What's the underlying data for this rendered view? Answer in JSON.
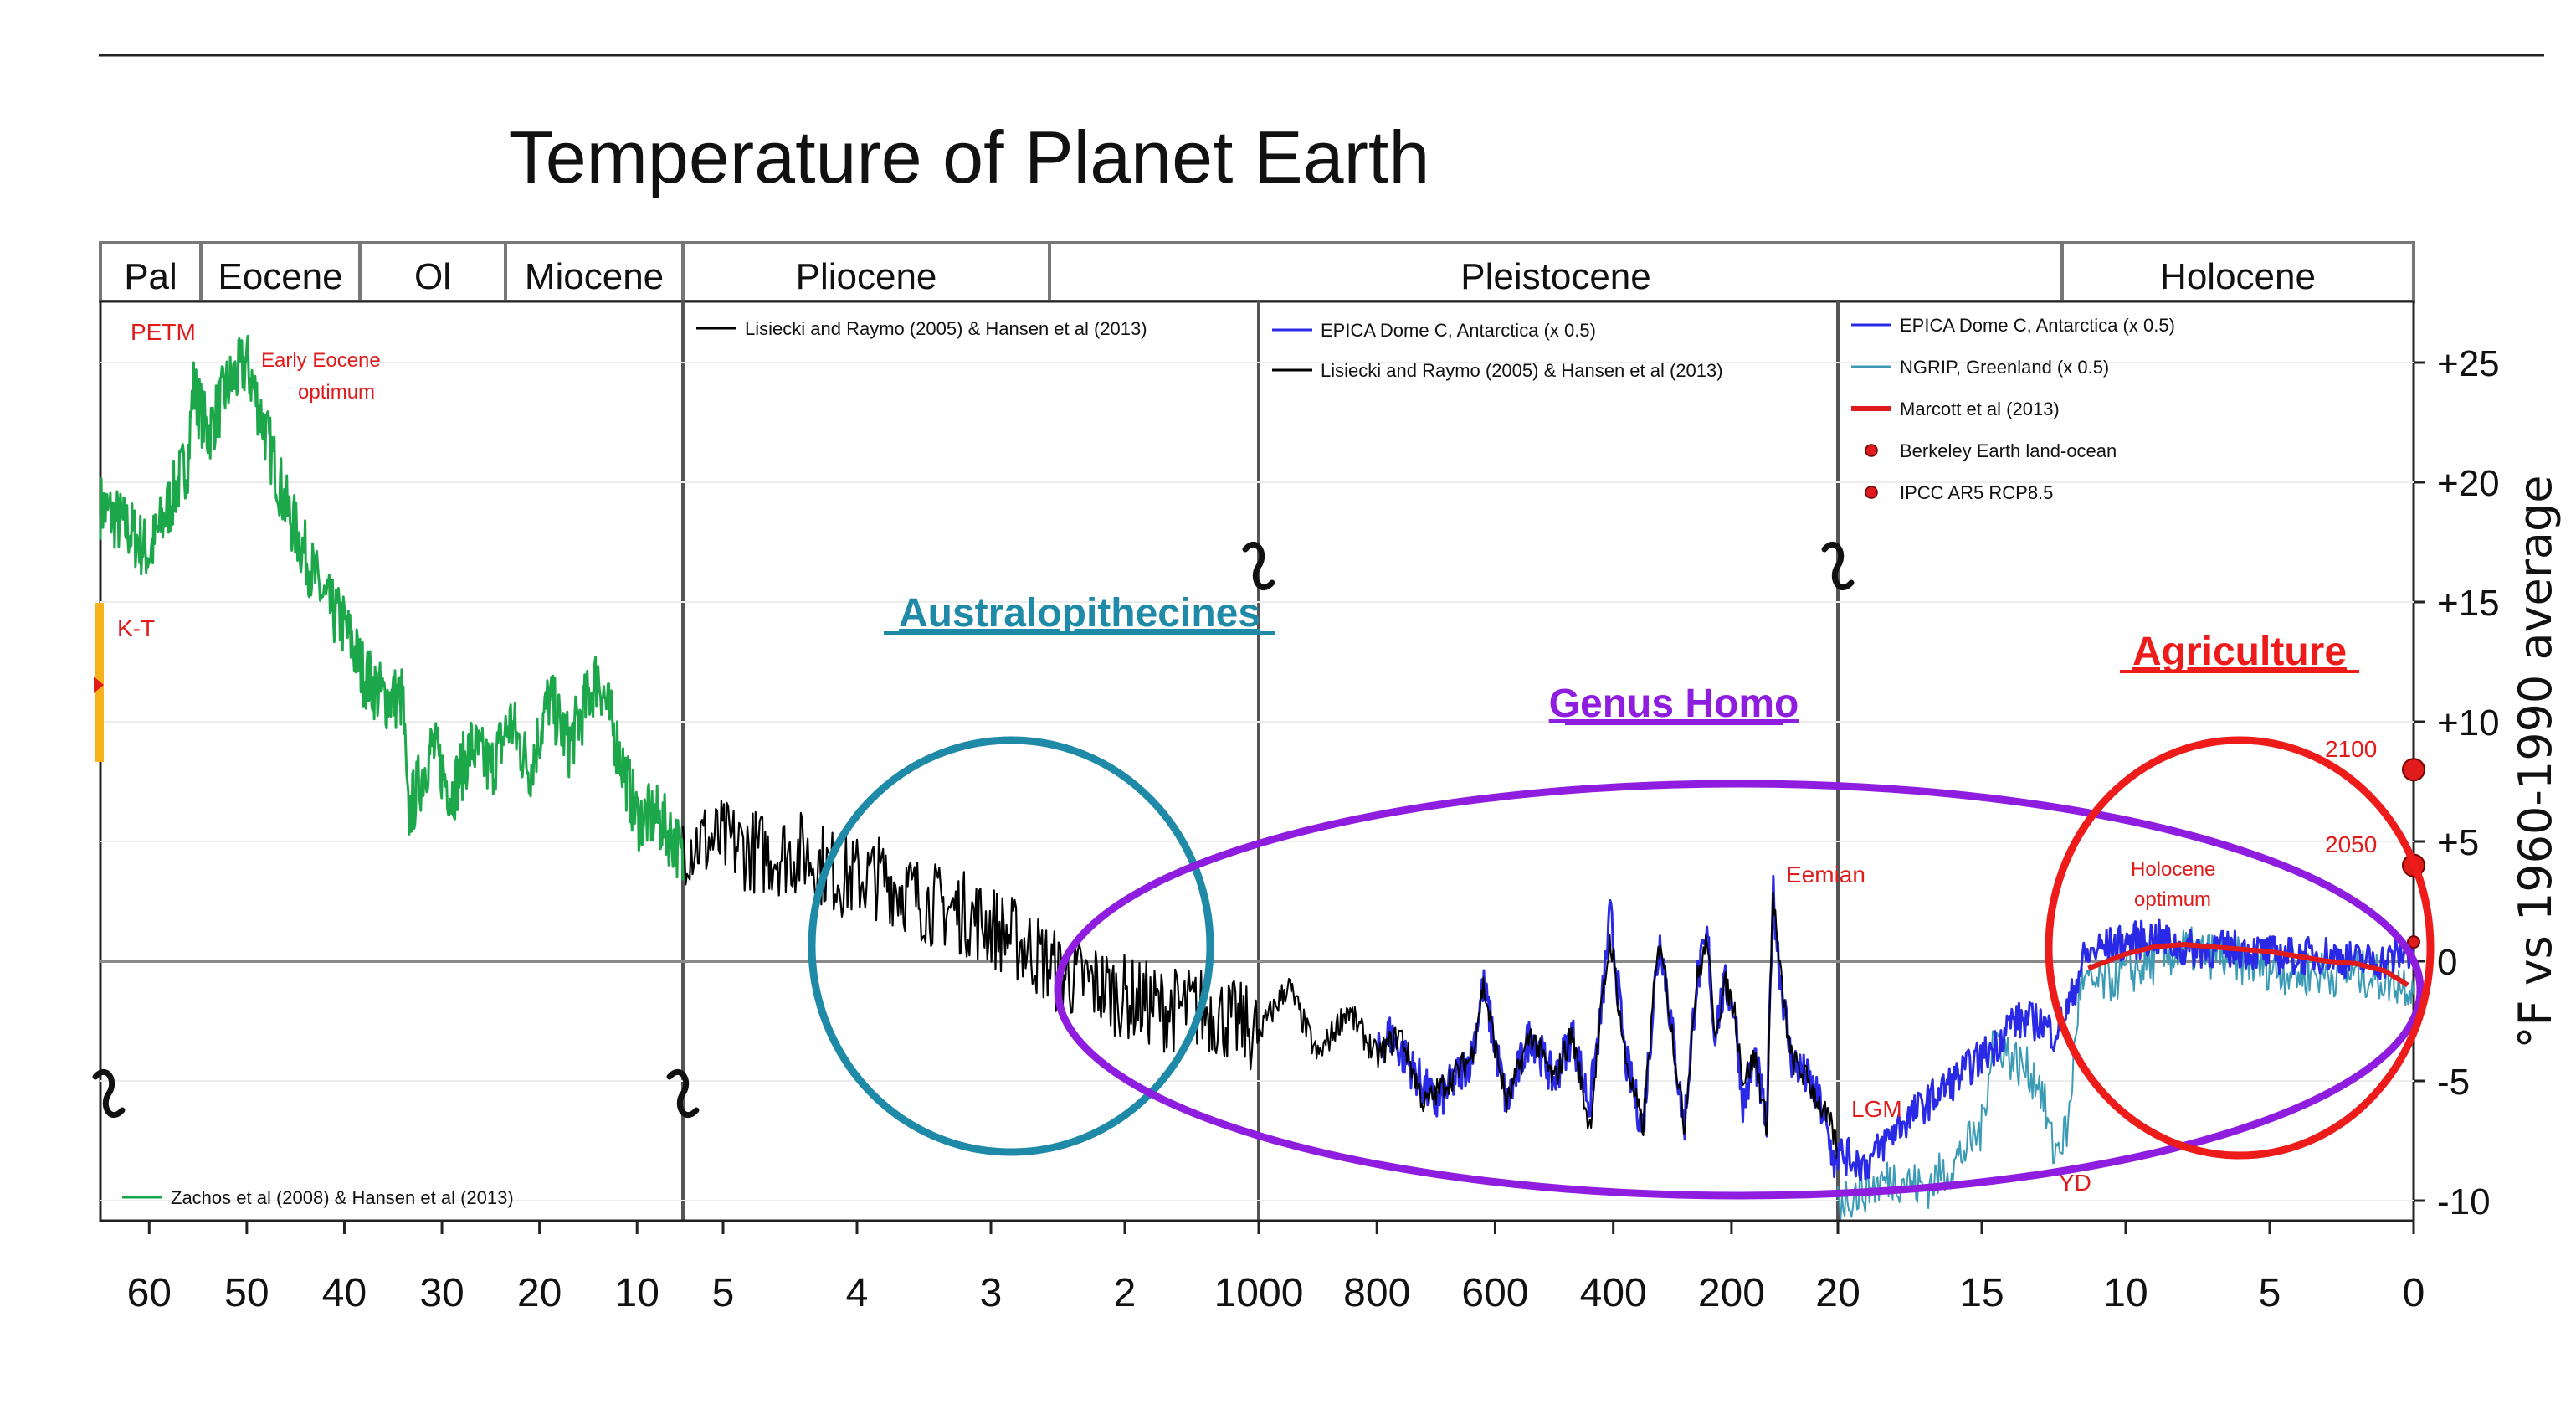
{
  "chart_data": {
    "type": "line",
    "title": "Temperature of Planet Earth",
    "ylabel": "°F vs 1960-1990 average",
    "ylim": [
      -10,
      27
    ],
    "y_ticks": [
      "+25",
      "+20",
      "+15",
      "+10",
      "+5",
      "0",
      "-5",
      "-10"
    ],
    "y_tick_values": [
      25,
      20,
      15,
      10,
      5,
      0,
      -5,
      -10
    ],
    "epochs": [
      "Pal",
      "Eocene",
      "Ol",
      "Miocene",
      "Pliocene",
      "Pleistocene",
      "Holocene"
    ],
    "panels": [
      {
        "x_unit": "Ma",
        "x_range": [
          65,
          5.3
        ],
        "x_ticks": [
          "60",
          "50",
          "40",
          "30",
          "20",
          "10"
        ],
        "x_tick_values": [
          60,
          50,
          40,
          30,
          20,
          10
        ],
        "legend": [
          "Zachos et al (2008) & Hansen et al (2013)"
        ],
        "annotations": [
          "PETM",
          "Early Eocene",
          "optimum",
          "K-T"
        ],
        "series": [
          {
            "name": "Zachos et al (2008) & Hansen et al (2013)",
            "color": "#1ca84a",
            "x": [
              65,
              62,
              60,
              58,
              56,
              55.5,
              54,
              52,
              50,
              48,
              46,
              44,
              42,
              40,
              38,
              36,
              34,
              33.5,
              31,
              29,
              27,
              25,
              23,
              21,
              19,
              17,
              15,
              14,
              12,
              10,
              8,
              6,
              5.3
            ],
            "values": [
              19,
              18,
              17,
              19,
              21,
              24,
              22,
              24,
              25,
              22,
              19,
              17,
              15,
              14,
              12,
              11,
              11,
              6,
              9,
              7,
              9,
              8,
              10,
              8,
              11,
              9,
              11,
              12,
              9,
              6,
              6,
              5,
              4
            ]
          }
        ]
      },
      {
        "x_unit": "Ma",
        "x_range": [
          5.3,
          1.0
        ],
        "x_ticks": [
          "5",
          "4",
          "3",
          "2"
        ],
        "x_tick_values": [
          5,
          4,
          3,
          2
        ],
        "legend": [
          "Lisiecki and Raymo (2005) & Hansen et al (2013)"
        ],
        "annotations": [],
        "series": [
          {
            "name": "Lisiecki and Raymo (2005) & Hansen et al (2013)",
            "color": "#000000",
            "x": [
              5.3,
              5.0,
              4.7,
              4.4,
              4.1,
              3.8,
              3.5,
              3.2,
              3.0,
              2.7,
              2.5,
              2.2,
              2.0,
              1.7,
              1.4,
              1.2,
              1.0
            ],
            "values": [
              5,
              5,
              4.5,
              4.5,
              3.5,
              3.5,
              2.5,
              2.0,
              1.5,
              0.5,
              -0.5,
              -1.0,
              -1.5,
              -2.0,
              -2.0,
              -2.5,
              -3.0
            ]
          }
        ]
      },
      {
        "x_unit": "ka",
        "x_range": [
          1000,
          20
        ],
        "x_ticks": [
          "1000",
          "800",
          "600",
          "400",
          "200",
          "20"
        ],
        "x_tick_values": [
          1000,
          800,
          600,
          400,
          200,
          20
        ],
        "legend": [
          "EPICA Dome C, Antarctica  (x 0.5)",
          "Lisiecki and Raymo (2005) & Hansen et al (2013)"
        ],
        "annotations": [
          "Eemian"
        ],
        "series": [
          {
            "name": "EPICA Dome C, Antarctica  (x 0.5)",
            "color": "#2a2ae6",
            "x": [
              800,
              780,
              700,
              640,
              620,
              580,
              540,
              500,
              470,
              440,
              420,
              405,
              380,
              350,
              330,
              320,
              300,
              280,
              260,
              240,
              230,
              210,
              195,
              180,
              160,
              140,
              130,
              120,
              100,
              70,
              50,
              30,
              20
            ],
            "values": [
              -4,
              -3,
              -6,
              -4,
              -1,
              -6,
              -3,
              -5,
              -3,
              -6,
              -2,
              2,
              -4,
              -7,
              -1,
              1,
              -3,
              -7,
              -1,
              1,
              -3,
              -1,
              -2,
              -6,
              -4,
              -7,
              3,
              0,
              -4,
              -5,
              -6,
              -8,
              -9
            ]
          },
          {
            "name": "Lisiecki and Raymo (2005) & Hansen et al (2013)",
            "color": "#000000",
            "x": [
              1000,
              950,
              900,
              850,
              800,
              760,
              720,
              680,
              640,
              620,
              580,
              540,
              500,
              470,
              440,
              420,
              405,
              380,
              350,
              330,
              320,
              300,
              280,
              260,
              240,
              230,
              210,
              195,
              180,
              160,
              140,
              130,
              120,
              100,
              70,
              50,
              30,
              20
            ],
            "values": [
              -3,
              -1,
              -4,
              -2,
              -4,
              -3,
              -6,
              -5,
              -4,
              -1,
              -6,
              -3,
              -5,
              -3,
              -7,
              -2,
              1,
              -4,
              -7,
              -1,
              1,
              -3,
              -7,
              -1,
              1,
              -3,
              -1,
              -2,
              -5,
              -4,
              -7,
              3,
              0,
              -4,
              -5,
              -6,
              -7,
              -8
            ]
          }
        ]
      },
      {
        "x_unit": "ka",
        "x_range": [
          20,
          0
        ],
        "x_ticks": [
          "20",
          "15",
          "10",
          "5",
          "0"
        ],
        "x_tick_values": [
          20,
          15,
          10,
          5,
          0
        ],
        "legend": [
          "EPICA Dome C, Antarctica  (x 0.5)",
          "NGRIP, Greenland (x 0.5)",
          "Marcott et al (2013)",
          "Berkeley Earth land-ocean",
          "IPCC AR5 RCP8.5"
        ],
        "annotations": [
          "LGM",
          "YD",
          "Holocene",
          "optimum",
          "2100",
          "2050"
        ],
        "series": [
          {
            "name": "EPICA Dome C, Antarctica  (x 0.5)",
            "color": "#2a2ae6",
            "x": [
              20,
              19,
              18,
              17,
              16,
              15,
              14.5,
              14,
              13,
              12.5,
              12,
              11.5,
              11,
              10,
              9,
              8,
              7,
              6,
              5,
              4,
              3,
              2,
              1,
              0
            ],
            "values": [
              -8,
              -8.5,
              -7,
              -6,
              -5,
              -4,
              -3.5,
              -2.5,
              -2.5,
              -3,
              -2,
              0,
              0.5,
              0.8,
              1,
              0.5,
              0.5,
              0.5,
              0.3,
              0.2,
              0.3,
              0,
              0,
              0.5
            ]
          },
          {
            "name": "NGRIP, Greenland (x 0.5)",
            "color": "#3b9bb5",
            "x": [
              20,
              19,
              18,
              17,
              16,
              15,
              14.6,
              14,
              13,
              12.5,
              12,
              11.6,
              11,
              10,
              8,
              6,
              4,
              2,
              0
            ],
            "values": [
              -10,
              -9.5,
              -9,
              -9.5,
              -8.5,
              -7,
              -3,
              -4,
              -5,
              -8,
              -7,
              -1,
              -1,
              -0.5,
              0.5,
              0,
              -0.5,
              -0.5,
              -1
            ]
          },
          {
            "name": "Marcott et al (2013)",
            "color": "#e01b1b",
            "x": [
              11.3,
              10,
              9,
              8,
              7,
              6,
              5,
              4,
              3,
              2,
              1,
              0.2
            ],
            "values": [
              -0.3,
              0.3,
              0.6,
              0.7,
              0.6,
              0.5,
              0.4,
              0.2,
              0,
              -0.1,
              -0.4,
              -1
            ]
          },
          {
            "name": "Berkeley Earth land-ocean",
            "color": "#e01b1b",
            "x": [
              0
            ],
            "values": [
              0.8
            ]
          },
          {
            "name": "IPCC AR5 RCP8.5",
            "color": "#e01b1b",
            "x": [
              0,
              0
            ],
            "values": [
              4,
              8
            ]
          }
        ]
      }
    ],
    "overlays": [
      {
        "label": "Australopithecines",
        "color": "#1e8aa7"
      },
      {
        "label": "Genus Homo",
        "color": "#8f1de0"
      },
      {
        "label": "Agriculture",
        "color": "#ee1b1b"
      }
    ]
  }
}
